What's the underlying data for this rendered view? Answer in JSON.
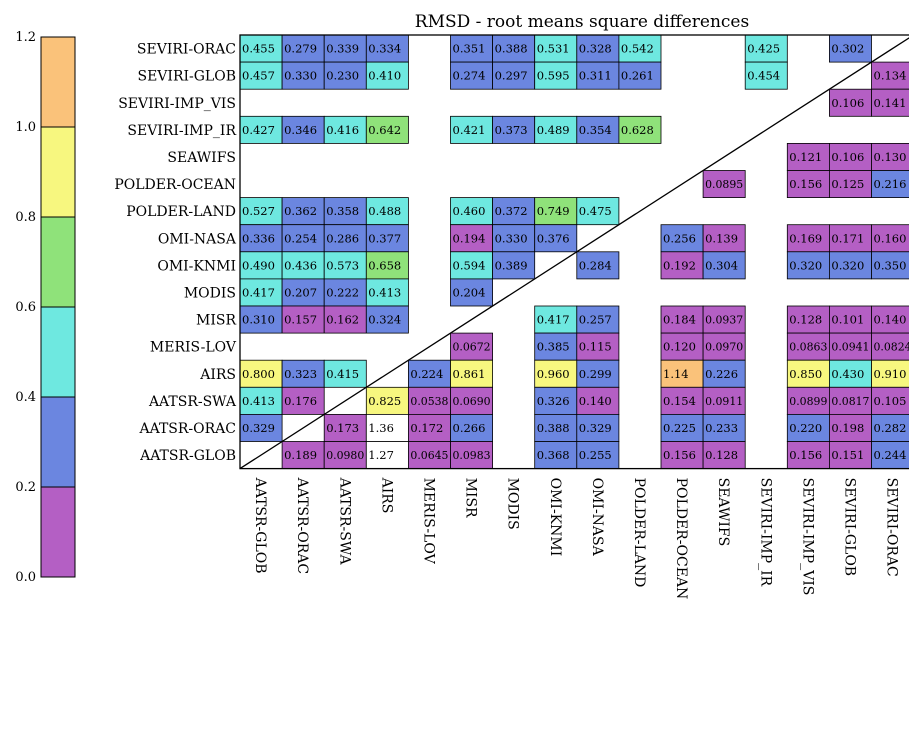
{
  "chart_data": {
    "type": "heatmap",
    "title": "RMSD - root means square differences",
    "labels": [
      "AATSR-GLOB",
      "AATSR-ORAC",
      "AATSR-SWA",
      "AIRS",
      "MERIS-LOV",
      "MISR",
      "MODIS",
      "OMI-KNMI",
      "OMI-NASA",
      "POLDER-LAND",
      "POLDER-OCEAN",
      "SEAWIFS",
      "SEVIRI-IMP_IR",
      "SEVIRI-IMP_VIS",
      "SEVIRI-GLOB",
      "SEVIRI-ORAC"
    ],
    "rows_top_to_bottom": [
      "SEVIRI-ORAC",
      "SEVIRI-GLOB",
      "SEVIRI-IMP_VIS",
      "SEVIRI-IMP_IR",
      "SEAWIFS",
      "POLDER-OCEAN",
      "POLDER-LAND",
      "OMI-NASA",
      "OMI-KNMI",
      "MODIS",
      "MISR",
      "MERIS-LOV",
      "AIRS",
      "AATSR-SWA",
      "AATSR-ORAC",
      "AATSR-GLOB"
    ],
    "columns": [
      "AATSR-GLOB",
      "AATSR-ORAC",
      "AATSR-SWA",
      "AIRS",
      "MERIS-LOV",
      "MISR",
      "MODIS",
      "OMI-KNMI",
      "OMI-NASA",
      "POLDER-LAND",
      "POLDER-OCEAN",
      "SEAWIFS",
      "SEVIRI-IMP_IR",
      "SEVIRI-IMP_VIS",
      "SEVIRI-GLOB",
      "SEVIRI-ORAC"
    ],
    "cells": [
      [
        "0.455",
        "0.279",
        "0.339",
        "0.334",
        "",
        "0.351",
        "0.388",
        "0.531",
        "0.328",
        "0.542",
        "",
        "",
        "0.425",
        "",
        "0.302",
        ""
      ],
      [
        "0.457",
        "0.330",
        "0.230",
        "0.410",
        "",
        "0.274",
        "0.297",
        "0.595",
        "0.311",
        "0.261",
        "",
        "",
        "0.454",
        "",
        "",
        "0.134"
      ],
      [
        "",
        "",
        "",
        "",
        "",
        "",
        "",
        "",
        "",
        "",
        "",
        "",
        "",
        "",
        "0.106",
        "0.141"
      ],
      [
        "0.427",
        "0.346",
        "0.416",
        "0.642",
        "",
        "0.421",
        "0.373",
        "0.489",
        "0.354",
        "0.628",
        "",
        "",
        "",
        "",
        "",
        ""
      ],
      [
        "",
        "",
        "",
        "",
        "",
        "",
        "",
        "",
        "",
        "",
        "",
        "",
        "",
        "0.121",
        "0.106",
        "0.130"
      ],
      [
        "",
        "",
        "",
        "",
        "",
        "",
        "",
        "",
        "",
        "",
        "",
        "0.0895",
        "",
        "0.156",
        "0.125",
        "0.216"
      ],
      [
        "0.527",
        "0.362",
        "0.358",
        "0.488",
        "",
        "0.460",
        "0.372",
        "0.749",
        "0.475",
        "",
        "",
        "",
        "",
        "",
        "",
        ""
      ],
      [
        "0.336",
        "0.254",
        "0.286",
        "0.377",
        "",
        "0.194",
        "0.330",
        "0.376",
        "",
        "",
        "0.256",
        "0.139",
        "",
        "0.169",
        "0.171",
        "0.160"
      ],
      [
        "0.490",
        "0.436",
        "0.573",
        "0.658",
        "",
        "0.594",
        "0.389",
        "",
        "0.284",
        "",
        "0.192",
        "0.304",
        "",
        "0.320",
        "0.320",
        "0.350"
      ],
      [
        "0.417",
        "0.207",
        "0.222",
        "0.413",
        "",
        "0.204",
        "",
        "",
        "",
        "",
        "",
        "",
        "",
        "",
        "",
        ""
      ],
      [
        "0.310",
        "0.157",
        "0.162",
        "0.324",
        "",
        "",
        "",
        "0.417",
        "0.257",
        "",
        "0.184",
        "0.0937",
        "",
        "0.128",
        "0.101",
        "0.140"
      ],
      [
        "",
        "",
        "",
        "",
        "",
        "0.0672",
        "",
        "0.385",
        "0.115",
        "",
        "0.120",
        "0.0970",
        "",
        "0.0863",
        "0.0941",
        "0.0824"
      ],
      [
        "0.800",
        "0.323",
        "0.415",
        "",
        "0.224",
        "0.861",
        "",
        "0.960",
        "0.299",
        "",
        "1.14",
        "0.226",
        "",
        "0.850",
        "0.430",
        "0.910"
      ],
      [
        "0.413",
        "0.176",
        "",
        "0.825",
        "0.0538",
        "0.0690",
        "",
        "0.326",
        "0.140",
        "",
        "0.154",
        "0.0911",
        "",
        "0.0899",
        "0.0817",
        "0.105"
      ],
      [
        "0.329",
        "",
        "0.173",
        "1.36",
        "0.172",
        "0.266",
        "",
        "0.388",
        "0.329",
        "",
        "0.225",
        "0.233",
        "",
        "0.220",
        "0.198",
        "0.282"
      ],
      [
        "",
        "0.189",
        "0.0980",
        "1.27",
        "0.0645",
        "0.0983",
        "",
        "0.368",
        "0.255",
        "",
        "0.156",
        "0.128",
        "",
        "0.156",
        "0.151",
        "0.244"
      ]
    ],
    "colorbar": {
      "range": [
        0.0,
        1.2
      ],
      "ticks": [
        "0.0",
        "0.2",
        "0.4",
        "0.6",
        "0.8",
        "1.0",
        "1.2"
      ],
      "bands": [
        {
          "from": 0.0,
          "to": 0.2,
          "color": "#b45fc4"
        },
        {
          "from": 0.2,
          "to": 0.4,
          "color": "#6b86e0"
        },
        {
          "from": 0.4,
          "to": 0.6,
          "color": "#6ee8e0"
        },
        {
          "from": 0.6,
          "to": 0.8,
          "color": "#8fe27a"
        },
        {
          "from": 0.8,
          "to": 1.0,
          "color": "#f7f77f"
        },
        {
          "from": 1.0,
          "to": 1.2,
          "color": "#fac27a"
        }
      ],
      "over_color": "#ffffff"
    },
    "diagonal_line": true
  }
}
